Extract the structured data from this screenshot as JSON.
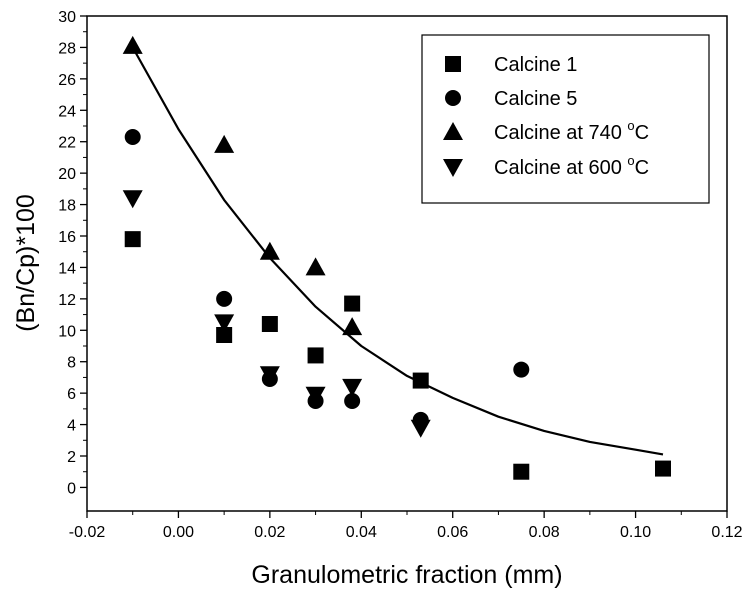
{
  "chart_data": {
    "type": "scatter",
    "xlabel": "Granulometric fraction (mm)",
    "ylabel": "(Bn/Cp)*100",
    "xlim": [
      -0.02,
      0.12
    ],
    "ylim": [
      -1.5,
      30
    ],
    "x_ticks": [
      "-0.02",
      "0.00",
      "0.02",
      "0.04",
      "0.06",
      "0.08",
      "0.10",
      "0.12"
    ],
    "y_ticks": [
      "0",
      "2",
      "4",
      "6",
      "8",
      "10",
      "12",
      "14",
      "16",
      "18",
      "20",
      "22",
      "24",
      "26",
      "28",
      "30"
    ],
    "grid": false,
    "legend_position": "top-right",
    "series": [
      {
        "name": "Calcine 1",
        "marker": "square",
        "points": [
          [
            -0.01,
            15.8
          ],
          [
            0.01,
            9.7
          ],
          [
            0.02,
            10.4
          ],
          [
            0.03,
            8.4
          ],
          [
            0.038,
            11.7
          ],
          [
            0.053,
            6.8
          ],
          [
            0.075,
            1.0
          ],
          [
            0.106,
            1.2
          ]
        ]
      },
      {
        "name": "Calcine 5",
        "marker": "circle",
        "points": [
          [
            -0.01,
            22.3
          ],
          [
            0.01,
            12.0
          ],
          [
            0.02,
            6.9
          ],
          [
            0.03,
            5.5
          ],
          [
            0.038,
            5.5
          ],
          [
            0.053,
            4.3
          ],
          [
            0.075,
            7.5
          ]
        ]
      },
      {
        "name": "Calcine at 740 °C",
        "marker": "triangle-up",
        "points": [
          [
            -0.01,
            28.1
          ],
          [
            0.01,
            21.8
          ],
          [
            0.02,
            15.0
          ],
          [
            0.03,
            14.0
          ],
          [
            0.038,
            10.2
          ]
        ]
      },
      {
        "name": "Calcine at 600 °C",
        "marker": "triangle-down",
        "points": [
          [
            -0.01,
            18.4
          ],
          [
            0.01,
            10.5
          ],
          [
            0.02,
            7.2
          ],
          [
            0.03,
            5.9
          ],
          [
            0.038,
            6.4
          ],
          [
            0.053,
            3.8
          ]
        ]
      }
    ],
    "fit_curve": {
      "type": "exponential",
      "points": [
        [
          -0.01,
          28.0
        ],
        [
          0.0,
          22.8
        ],
        [
          0.01,
          18.3
        ],
        [
          0.02,
          14.6
        ],
        [
          0.03,
          11.5
        ],
        [
          0.04,
          9.0
        ],
        [
          0.05,
          7.1
        ],
        [
          0.06,
          5.7
        ],
        [
          0.07,
          4.5
        ],
        [
          0.08,
          3.6
        ],
        [
          0.09,
          2.9
        ],
        [
          0.1,
          2.4
        ],
        [
          0.106,
          2.1
        ]
      ]
    }
  }
}
